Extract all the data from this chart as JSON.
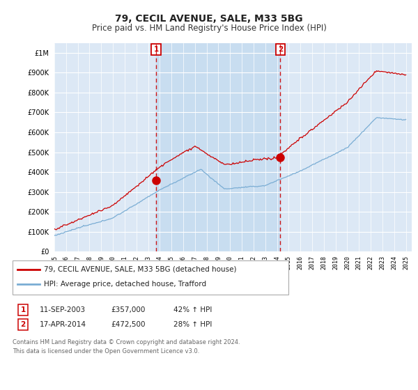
{
  "title": "79, CECIL AVENUE, SALE, M33 5BG",
  "subtitle": "Price paid vs. HM Land Registry's House Price Index (HPI)",
  "title_fontsize": 10,
  "subtitle_fontsize": 8.5,
  "ytick_vals": [
    0,
    100000,
    200000,
    300000,
    400000,
    500000,
    600000,
    700000,
    800000,
    900000,
    1000000
  ],
  "xlim": [
    1995.0,
    2025.5
  ],
  "ylim": [
    0,
    1050000
  ],
  "plot_bg": "#dce8f5",
  "shade_color": "#c8ddf0",
  "grid_color": "#ffffff",
  "red_line_color": "#cc0000",
  "blue_line_color": "#7aadd4",
  "marker_color": "#cc0000",
  "marker_box_color": "#cc0000",
  "sale1_x": 2003.69,
  "sale1_y": 357000,
  "sale1_label": "1",
  "sale1_date": "11-SEP-2003",
  "sale1_price": "£357,000",
  "sale1_hpi": "42% ↑ HPI",
  "sale2_x": 2014.29,
  "sale2_y": 472500,
  "sale2_label": "2",
  "sale2_date": "17-APR-2014",
  "sale2_price": "£472,500",
  "sale2_hpi": "28% ↑ HPI",
  "legend_line1": "79, CECIL AVENUE, SALE, M33 5BG (detached house)",
  "legend_line2": "HPI: Average price, detached house, Trafford",
  "footer": "Contains HM Land Registry data © Crown copyright and database right 2024.\nThis data is licensed under the Open Government Licence v3.0.",
  "xtick_years": [
    1995,
    1996,
    1997,
    1998,
    1999,
    2000,
    2001,
    2002,
    2003,
    2004,
    2005,
    2006,
    2007,
    2008,
    2009,
    2010,
    2011,
    2012,
    2013,
    2014,
    2015,
    2016,
    2017,
    2018,
    2019,
    2020,
    2021,
    2022,
    2023,
    2024,
    2025
  ]
}
